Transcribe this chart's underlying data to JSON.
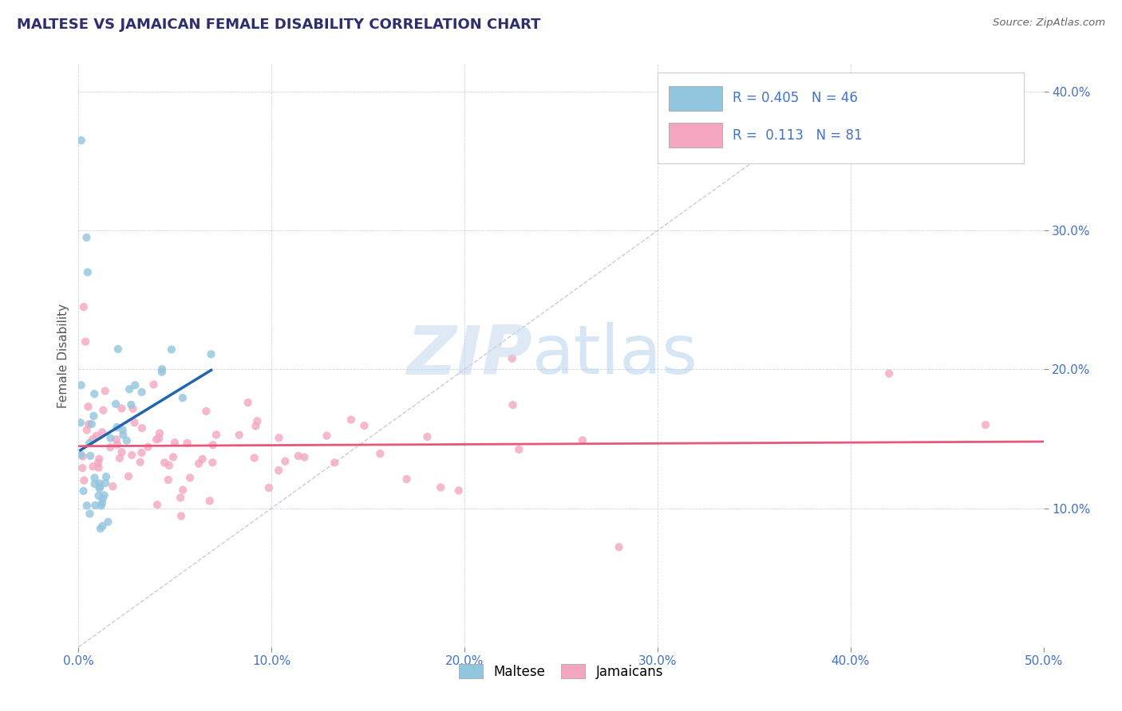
{
  "title": "MALTESE VS JAMAICAN FEMALE DISABILITY CORRELATION CHART",
  "source": "Source: ZipAtlas.com",
  "ylabel": "Female Disability",
  "legend_label1": "Maltese",
  "legend_label2": "Jamaicans",
  "R1": 0.405,
  "N1": 46,
  "R2": 0.113,
  "N2": 81,
  "xlim": [
    0.0,
    0.5
  ],
  "ylim": [
    0.0,
    0.42
  ],
  "yticks": [
    0.1,
    0.2,
    0.3,
    0.4
  ],
  "xticks": [
    0.0,
    0.1,
    0.2,
    0.3,
    0.4,
    0.5
  ],
  "color_maltese": "#92c5de",
  "color_jamaican": "#f4a6c0",
  "color_line_maltese": "#2166ac",
  "color_line_jamaican": "#e8567a",
  "color_diagonal": "#b0b8c8",
  "background_color": "#ffffff",
  "watermark_zip": "ZIP",
  "watermark_atlas": "atlas",
  "title_color": "#2e2e6e",
  "source_color": "#666666",
  "axis_label_color": "#4472c4",
  "legend_r_color": "#4472c4",
  "tick_color": "#4472c4"
}
